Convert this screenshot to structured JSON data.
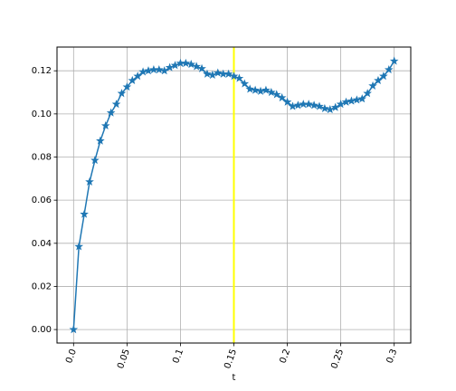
{
  "chart_data": {
    "type": "line",
    "title": "",
    "xlabel": "t",
    "ylabel": "",
    "xlim": [
      -0.0155,
      0.3155
    ],
    "ylim": [
      -0.00625,
      0.131
    ],
    "grid": true,
    "x_ticks": [
      0.0,
      0.05,
      0.1,
      0.15,
      0.2,
      0.25,
      0.3
    ],
    "x_tick_labels": [
      "0.0",
      "0.05",
      "0.1",
      "0.15",
      "0.2",
      "0.25",
      "0.3"
    ],
    "y_ticks": [
      0.0,
      0.02,
      0.04,
      0.06,
      0.08,
      0.1,
      0.12
    ],
    "y_tick_labels": [
      "0.00",
      "0.02",
      "0.04",
      "0.06",
      "0.08",
      "0.10",
      "0.12"
    ],
    "vline": {
      "x": 0.15,
      "color": "#ffff00"
    },
    "series": [
      {
        "color": "#1f77b4",
        "marker": "star",
        "x": [
          0.0,
          0.005,
          0.01,
          0.015,
          0.02,
          0.025,
          0.03,
          0.035,
          0.04,
          0.045,
          0.05,
          0.055,
          0.06,
          0.065,
          0.07,
          0.075,
          0.08,
          0.085,
          0.09,
          0.095,
          0.1,
          0.105,
          0.11,
          0.115,
          0.12,
          0.125,
          0.13,
          0.135,
          0.14,
          0.145,
          0.15,
          0.155,
          0.16,
          0.165,
          0.17,
          0.175,
          0.18,
          0.185,
          0.19,
          0.195,
          0.2,
          0.205,
          0.21,
          0.215,
          0.22,
          0.225,
          0.23,
          0.235,
          0.24,
          0.245,
          0.25,
          0.255,
          0.26,
          0.265,
          0.27,
          0.275,
          0.28,
          0.285,
          0.29,
          0.295,
          0.3
        ],
        "y": [
          0.0,
          0.0385,
          0.0535,
          0.0685,
          0.0785,
          0.0875,
          0.0945,
          0.1005,
          0.1045,
          0.1095,
          0.1125,
          0.1155,
          0.1175,
          0.1195,
          0.12,
          0.1205,
          0.1205,
          0.12,
          0.1215,
          0.1225,
          0.1235,
          0.1235,
          0.123,
          0.122,
          0.121,
          0.1185,
          0.118,
          0.119,
          0.1185,
          0.1185,
          0.1175,
          0.1165,
          0.114,
          0.1115,
          0.111,
          0.1105,
          0.111,
          0.11,
          0.109,
          0.1075,
          0.1055,
          0.1035,
          0.104,
          0.1045,
          0.1045,
          0.104,
          0.1035,
          0.1025,
          0.102,
          0.103,
          0.1045,
          0.1055,
          0.106,
          0.1065,
          0.107,
          0.1095,
          0.113,
          0.1155,
          0.1175,
          0.1205,
          0.1245
        ]
      }
    ]
  }
}
